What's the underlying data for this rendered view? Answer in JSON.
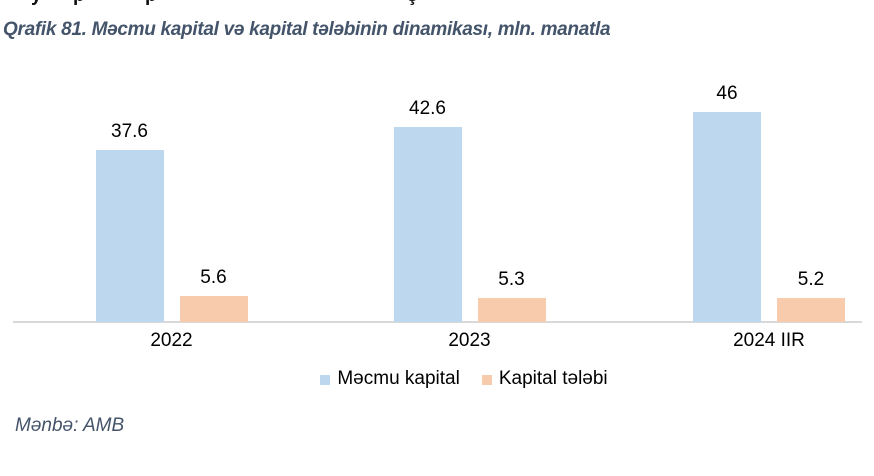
{
  "caption": "Qrafik 81. Məcmu kapital və kapital tələbinin dinamikası, mln. manatla",
  "source_note": "Mənbə: AMB",
  "clipped_top_text_fragments": [
    {
      "glyph": "y",
      "x": 31
    },
    {
      "glyph": "p",
      "x": 73
    },
    {
      "glyph": "p",
      "x": 145
    },
    {
      "glyph": "ş",
      "x": 407
    }
  ],
  "chart_data": {
    "type": "bar",
    "title": "Qrafik 81. Məcmu kapital və kapital tələbinin dinamikası, mln. manatla",
    "unit": "mln. manatla",
    "categories": [
      "2022",
      "2023",
      "2024 IIR"
    ],
    "series": [
      {
        "name": "Məcmu kapital",
        "color": "#BDD7EE",
        "values": [
          37.6,
          42.6,
          46
        ],
        "labels": [
          "37.6",
          "42.6",
          "46"
        ]
      },
      {
        "name": "Kapital tələbi",
        "color": "#F8CBAD",
        "values": [
          5.6,
          5.3,
          5.2
        ],
        "labels": [
          "5.6",
          "5.3",
          "5.2"
        ]
      }
    ],
    "xlabel": "",
    "ylabel": "",
    "ylim": [
      0,
      50
    ],
    "grid": false,
    "y_axis_visible": false,
    "legend_position": "bottom",
    "axis_color": "#D9D9D9",
    "label_color": "#000000"
  }
}
